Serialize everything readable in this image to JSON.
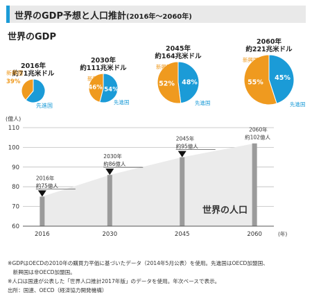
{
  "header": {
    "title": "世界のGDP予想と人口推計",
    "subtitle": "(2016年～2060年)"
  },
  "gdp_section_title": "世界のGDP",
  "colors": {
    "accent": "#1b9bd7",
    "developed": "#1b9bd7",
    "emerging": "#ef9a1f",
    "bar": "#9b9b9b",
    "area": "#ebebeb",
    "marker": "#111111"
  },
  "chart_data": [
    {
      "type": "pie",
      "id": "gdp",
      "legend": {
        "emerging": "新興国",
        "developed": "先進国"
      },
      "pies": [
        {
          "year_label": "2016年",
          "total_label": "約71兆米ドル",
          "emerging": 39,
          "developed": 61,
          "emerging_label": "39%",
          "developed_label": "61%"
        },
        {
          "year_label": "2030年",
          "total_label": "約111兆米ドル",
          "emerging": 46,
          "developed": 54,
          "emerging_label": "46%",
          "developed_label": "54%"
        },
        {
          "year_label": "2045年",
          "total_label": "約164兆米ドル",
          "emerging": 52,
          "developed": 48,
          "emerging_label": "52%",
          "developed_label": "48%"
        },
        {
          "year_label": "2060年",
          "total_label": "約221兆米ドル",
          "emerging": 55,
          "developed": 45,
          "emerging_label": "55%",
          "developed_label": "45%"
        }
      ]
    },
    {
      "type": "area",
      "id": "population",
      "title": "世界の人口",
      "ylabel": "(億人)",
      "xlabel": "(年)",
      "ylim": [
        60,
        110
      ],
      "yticks": [
        60,
        70,
        80,
        90,
        100,
        110
      ],
      "xlim": [
        2012,
        2064
      ],
      "x": [
        2016,
        2030,
        2045,
        2060
      ],
      "values": [
        75,
        86,
        95,
        102
      ],
      "annotations": [
        {
          "year": "2016年",
          "value": "約75億人"
        },
        {
          "year": "2030年",
          "value": "約86億人"
        },
        {
          "year": "2045年",
          "value": "約95億人"
        },
        {
          "year": "2060年",
          "value": "約102億人"
        }
      ]
    }
  ],
  "footnotes": [
    "※GDPはOECDの2010年の購買力平価に基づいたデータ（2014年5月公表）を使用。先進国はOECD加盟国、",
    "　新興国は非OECD加盟国。",
    "※人口は国連が公表した「世界人口推計2017年版」のデータを使用。年次ベースで表示。",
    "出所：国連、OECD（経済協力開発機構）"
  ]
}
